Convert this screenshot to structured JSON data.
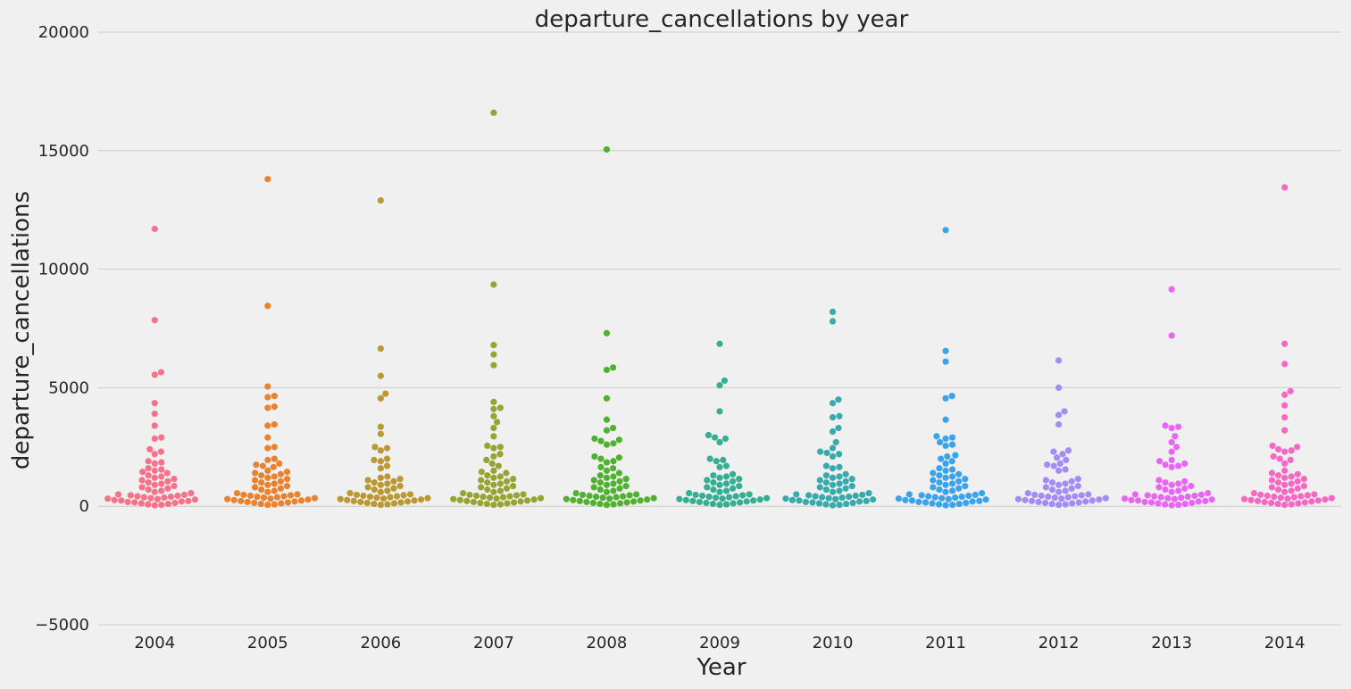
{
  "chart_data": {
    "type": "scatter",
    "subtype": "swarm",
    "title": "departure_cancellations by year",
    "xlabel": "Year",
    "ylabel": "departure_cancellations",
    "ylim": [
      -5000,
      20000
    ],
    "yticks": [
      -5000,
      0,
      5000,
      10000,
      15000,
      20000
    ],
    "ytick_labels": [
      "−5000",
      "0",
      "5000",
      "10000",
      "15000",
      "20000"
    ],
    "grid": true,
    "categories": [
      "2004",
      "2005",
      "2006",
      "2007",
      "2008",
      "2009",
      "2010",
      "2011",
      "2012",
      "2013",
      "2014"
    ],
    "colors": [
      "#f77189",
      "#e9822f",
      "#bb9832",
      "#97a431",
      "#50b131",
      "#35ae93",
      "#38aaac",
      "#3ba3ec",
      "#a48cf4",
      "#e866f4",
      "#f668c2"
    ],
    "series": [
      {
        "values": [
          11700,
          7850,
          5650,
          5550,
          4350,
          3900,
          3400,
          2900,
          2850,
          2400,
          2300,
          2200,
          1900,
          1850,
          1800,
          1600,
          1550,
          1500,
          1450,
          1400,
          1300,
          1250,
          1200,
          1150,
          1100,
          1050,
          1000,
          950,
          900,
          850,
          800,
          750,
          700,
          650,
          600,
          550,
          500,
          480,
          460,
          440,
          420,
          400,
          380,
          360,
          340,
          320,
          300,
          280,
          260,
          240,
          220,
          200,
          180,
          160,
          140,
          120,
          100,
          80,
          60,
          40
        ]
      },
      {
        "values": [
          13800,
          8450,
          5050,
          4650,
          4600,
          4200,
          4150,
          3450,
          3400,
          2900,
          2500,
          2450,
          2000,
          1950,
          1800,
          1750,
          1700,
          1650,
          1500,
          1450,
          1400,
          1350,
          1300,
          1250,
          1200,
          1150,
          1100,
          1050,
          1000,
          950,
          900,
          850,
          800,
          750,
          700,
          650,
          600,
          550,
          500,
          480,
          460,
          440,
          420,
          400,
          380,
          360,
          340,
          320,
          300,
          280,
          260,
          240,
          220,
          200,
          180,
          160,
          140,
          120,
          100,
          80,
          60
        ]
      },
      {
        "values": [
          12900,
          6650,
          5500,
          4750,
          4550,
          3350,
          3050,
          2500,
          2450,
          2350,
          2000,
          1950,
          1900,
          1700,
          1600,
          1250,
          1200,
          1150,
          1100,
          1050,
          1000,
          950,
          900,
          850,
          800,
          750,
          700,
          650,
          600,
          550,
          500,
          480,
          460,
          440,
          420,
          400,
          380,
          360,
          340,
          320,
          300,
          280,
          260,
          240,
          220,
          200,
          180,
          160,
          140,
          120,
          100,
          80,
          60
        ]
      },
      {
        "values": [
          16600,
          9350,
          6800,
          6400,
          5950,
          4400,
          4150,
          4100,
          3800,
          3550,
          3300,
          2950,
          2550,
          2500,
          2450,
          2200,
          2100,
          1950,
          1800,
          1700,
          1500,
          1450,
          1400,
          1300,
          1250,
          1200,
          1150,
          1100,
          1050,
          1000,
          950,
          900,
          850,
          800,
          750,
          700,
          650,
          600,
          550,
          500,
          480,
          460,
          440,
          420,
          400,
          380,
          360,
          340,
          320,
          300,
          280,
          260,
          240,
          220,
          200,
          180,
          160,
          140,
          120,
          100,
          80,
          60
        ]
      },
      {
        "values": [
          15050,
          7300,
          5850,
          5750,
          4550,
          3650,
          3300,
          3200,
          2850,
          2800,
          2750,
          2650,
          2600,
          2100,
          2050,
          2000,
          1900,
          1850,
          1650,
          1600,
          1500,
          1400,
          1300,
          1250,
          1200,
          1150,
          1100,
          1050,
          1000,
          950,
          900,
          850,
          800,
          750,
          700,
          650,
          600,
          550,
          500,
          480,
          460,
          440,
          420,
          400,
          380,
          360,
          340,
          320,
          300,
          280,
          260,
          240,
          220,
          200,
          180,
          160,
          140,
          120,
          100,
          80,
          60
        ]
      },
      {
        "values": [
          6850,
          5300,
          5100,
          4000,
          3000,
          2900,
          2850,
          2700,
          2000,
          1950,
          1900,
          1700,
          1650,
          1350,
          1300,
          1250,
          1200,
          1150,
          1100,
          1050,
          1000,
          950,
          900,
          850,
          800,
          750,
          700,
          650,
          600,
          550,
          500,
          480,
          460,
          440,
          420,
          400,
          380,
          360,
          340,
          320,
          300,
          280,
          260,
          240,
          220,
          200,
          180,
          160,
          140,
          120,
          100,
          80,
          60
        ]
      },
      {
        "values": [
          8200,
          7800,
          4500,
          4350,
          3800,
          3750,
          3300,
          3150,
          2700,
          2450,
          2300,
          2250,
          2200,
          2100,
          1700,
          1650,
          1600,
          1350,
          1300,
          1250,
          1200,
          1150,
          1100,
          1050,
          1000,
          950,
          900,
          850,
          800,
          750,
          700,
          650,
          600,
          550,
          500,
          480,
          460,
          440,
          420,
          400,
          380,
          360,
          340,
          320,
          300,
          280,
          260,
          240,
          220,
          200,
          180,
          160,
          140,
          120,
          100,
          80,
          60,
          40
        ]
      },
      {
        "values": [
          11650,
          6550,
          6100,
          4650,
          4550,
          3650,
          2950,
          2900,
          2850,
          2700,
          2600,
          2550,
          2150,
          2100,
          2000,
          1900,
          1800,
          1600,
          1550,
          1500,
          1400,
          1350,
          1300,
          1250,
          1200,
          1150,
          1100,
          1050,
          1000,
          950,
          900,
          850,
          800,
          750,
          700,
          650,
          600,
          550,
          500,
          480,
          460,
          440,
          420,
          400,
          380,
          360,
          340,
          320,
          300,
          280,
          260,
          240,
          220,
          200,
          180,
          160,
          140,
          120,
          100,
          80,
          60,
          40
        ]
      },
      {
        "values": [
          6150,
          5000,
          4000,
          3850,
          3450,
          2350,
          2300,
          2200,
          2050,
          1950,
          1800,
          1750,
          1700,
          1550,
          1500,
          1150,
          1100,
          1050,
          1000,
          950,
          900,
          850,
          800,
          750,
          700,
          650,
          600,
          550,
          500,
          480,
          460,
          440,
          420,
          400,
          380,
          360,
          340,
          320,
          300,
          280,
          260,
          240,
          220,
          200,
          180,
          160,
          140,
          120,
          100,
          80,
          60
        ]
      },
      {
        "values": [
          9150,
          7200,
          3400,
          3350,
          3300,
          2950,
          2700,
          2500,
          2300,
          1950,
          1900,
          1800,
          1750,
          1700,
          1650,
          1100,
          1050,
          1000,
          950,
          900,
          850,
          800,
          750,
          700,
          650,
          600,
          550,
          500,
          480,
          460,
          440,
          420,
          400,
          380,
          360,
          340,
          320,
          300,
          280,
          260,
          240,
          220,
          200,
          180,
          160,
          140,
          120,
          100,
          80,
          60,
          40
        ]
      },
      {
        "values": [
          13450,
          6850,
          6000,
          4850,
          4700,
          4250,
          3750,
          3200,
          2550,
          2500,
          2400,
          2350,
          2300,
          2100,
          2000,
          1950,
          1800,
          1500,
          1400,
          1350,
          1300,
          1250,
          1200,
          1150,
          1100,
          1050,
          1000,
          950,
          900,
          850,
          800,
          750,
          700,
          650,
          600,
          550,
          500,
          480,
          460,
          440,
          420,
          400,
          380,
          360,
          340,
          320,
          300,
          280,
          260,
          240,
          220,
          200,
          180,
          160,
          140,
          120,
          100,
          80,
          60
        ]
      }
    ]
  }
}
